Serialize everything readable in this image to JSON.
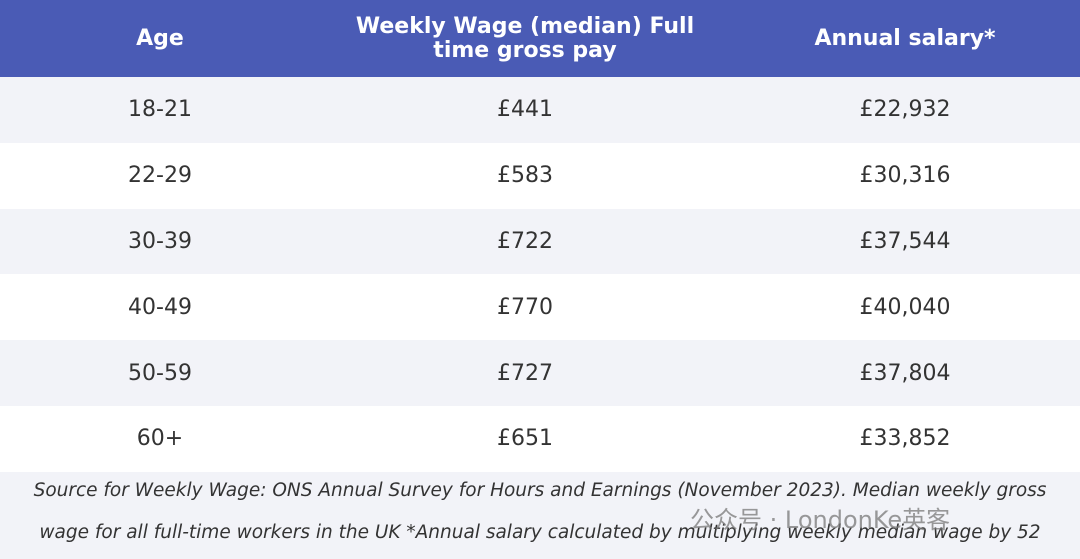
{
  "table": {
    "header": [
      "Age",
      "Weekly Wage (median) Full time gross pay",
      "Annual salary*"
    ],
    "rows": [
      [
        "18-21",
        "£441",
        "£22,932"
      ],
      [
        "22-29",
        "£583",
        "£30,316"
      ],
      [
        "30-39",
        "£722",
        "£37,544"
      ],
      [
        "40-49",
        "£770",
        "£40,040"
      ],
      [
        "50-59",
        "£727",
        "£37,804"
      ],
      [
        "60+",
        "£651",
        "£33,852"
      ]
    ]
  },
  "footnote": "Source for Weekly Wage: ONS Annual Survey for Hours and Earnings (November 2023). Median weekly gross wage for all full-time workers in the UK *Annual salary calculated by multiplying weekly median wage by 52",
  "watermark": "公众号 · LondonKe英客"
}
